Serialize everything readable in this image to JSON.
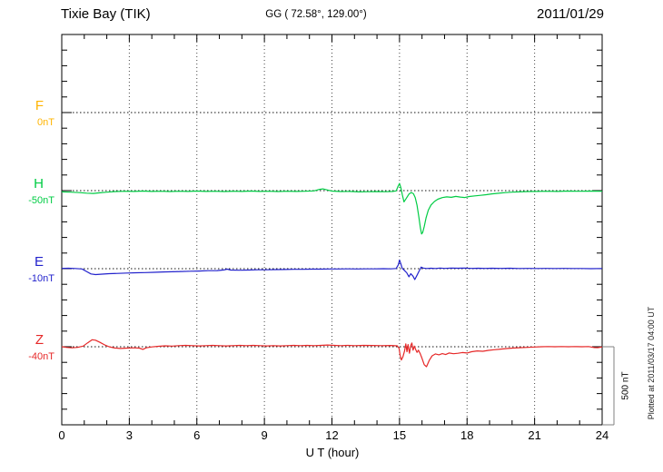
{
  "header": {
    "station": "Tixie Bay (TIK)",
    "coords": "GG ( 72.58°, 129.00°)",
    "date": "2011/01/29"
  },
  "chart_data": {
    "type": "line",
    "title": "Tixie Bay (TIK)",
    "station_code": "TIK",
    "date": "2011/01/29",
    "coordinates": "GG ( 72.58°, 129.00°)",
    "xlabel": "U T (hour)",
    "x_range": [
      0,
      24
    ],
    "x_ticks": [
      0,
      3,
      6,
      9,
      12,
      15,
      18,
      21,
      24
    ],
    "x_minor_tick_hours": 1,
    "row_spacing_nT": 500,
    "y_tick_interval_nT": 100,
    "values_unit": "nT deviation from each component baseline",
    "grid": "dotted vertical lines every 3 h; dotted horizontal baseline per component",
    "scale_bar": {
      "label": "500 nT",
      "nT": 500
    },
    "footer_note": "Plotted at 2011/03/17 04:00 UT",
    "components": [
      {
        "name": "F",
        "offset_label": "0nT",
        "color": "#ffb400",
        "has_data": false,
        "points": []
      },
      {
        "name": "H",
        "offset_label": "-50nT",
        "color": "#00cc44",
        "has_data": true,
        "points": [
          [
            0,
            -8
          ],
          [
            0.4,
            -10
          ],
          [
            0.8,
            -13
          ],
          [
            1.1,
            -16
          ],
          [
            1.4,
            -18
          ],
          [
            1.7,
            -14
          ],
          [
            2.0,
            -10
          ],
          [
            2.4,
            -6
          ],
          [
            2.8,
            -4
          ],
          [
            3.2,
            -5
          ],
          [
            3.6,
            -3
          ],
          [
            4.0,
            -5
          ],
          [
            4.4,
            -4
          ],
          [
            4.8,
            -6
          ],
          [
            5.2,
            -4
          ],
          [
            5.6,
            -5
          ],
          [
            6.0,
            -3
          ],
          [
            6.4,
            -5
          ],
          [
            6.8,
            -4
          ],
          [
            7.2,
            -6
          ],
          [
            7.6,
            -4
          ],
          [
            8.0,
            -5
          ],
          [
            8.4,
            -3
          ],
          [
            8.8,
            -5
          ],
          [
            9.2,
            -4
          ],
          [
            9.6,
            -6
          ],
          [
            10.0,
            -4
          ],
          [
            10.4,
            -5
          ],
          [
            10.8,
            -4
          ],
          [
            11.2,
            -2
          ],
          [
            11.45,
            8
          ],
          [
            11.6,
            11
          ],
          [
            11.8,
            4
          ],
          [
            12.0,
            -3
          ],
          [
            12.4,
            -6
          ],
          [
            12.8,
            -5
          ],
          [
            13.2,
            -8
          ],
          [
            13.6,
            -7
          ],
          [
            14.0,
            -6
          ],
          [
            14.4,
            -7
          ],
          [
            14.7,
            -5
          ],
          [
            14.85,
            -2
          ],
          [
            14.93,
            25
          ],
          [
            15.0,
            46
          ],
          [
            15.06,
            18
          ],
          [
            15.12,
            -25
          ],
          [
            15.2,
            -72
          ],
          [
            15.3,
            -50
          ],
          [
            15.42,
            -22
          ],
          [
            15.52,
            -12
          ],
          [
            15.62,
            -20
          ],
          [
            15.7,
            -45
          ],
          [
            15.78,
            -95
          ],
          [
            15.86,
            -170
          ],
          [
            15.93,
            -240
          ],
          [
            15.98,
            -278
          ],
          [
            16.03,
            -268
          ],
          [
            16.1,
            -230
          ],
          [
            16.18,
            -175
          ],
          [
            16.28,
            -125
          ],
          [
            16.4,
            -92
          ],
          [
            16.55,
            -70
          ],
          [
            16.7,
            -55
          ],
          [
            16.9,
            -45
          ],
          [
            17.1,
            -40
          ],
          [
            17.3,
            -43
          ],
          [
            17.5,
            -37
          ],
          [
            17.7,
            -41
          ],
          [
            17.9,
            -44
          ],
          [
            18.1,
            -38
          ],
          [
            18.35,
            -34
          ],
          [
            18.6,
            -30
          ],
          [
            18.85,
            -26
          ],
          [
            19.1,
            -21
          ],
          [
            19.4,
            -17
          ],
          [
            19.7,
            -13
          ],
          [
            20.0,
            -10
          ],
          [
            20.3,
            -8
          ],
          [
            20.7,
            -6
          ],
          [
            21.1,
            -5
          ],
          [
            21.5,
            -4
          ],
          [
            22.0,
            -5
          ],
          [
            22.5,
            -3
          ],
          [
            23.0,
            -4
          ],
          [
            23.5,
            -3
          ],
          [
            24.0,
            -4
          ]
        ]
      },
      {
        "name": "E",
        "offset_label": "-10nT",
        "color": "#2222cc",
        "has_data": true,
        "points": [
          [
            0,
            2
          ],
          [
            0.3,
            3
          ],
          [
            0.6,
            1
          ],
          [
            0.9,
            -2
          ],
          [
            1.1,
            -18
          ],
          [
            1.3,
            -34
          ],
          [
            1.5,
            -38
          ],
          [
            1.8,
            -35
          ],
          [
            2.1,
            -32
          ],
          [
            2.5,
            -30
          ],
          [
            2.9,
            -28
          ],
          [
            3.3,
            -26
          ],
          [
            3.7,
            -25
          ],
          [
            4.1,
            -23
          ],
          [
            4.5,
            -21
          ],
          [
            4.9,
            -20
          ],
          [
            5.3,
            -18
          ],
          [
            5.7,
            -16
          ],
          [
            6.1,
            -15
          ],
          [
            6.5,
            -13
          ],
          [
            6.9,
            -12
          ],
          [
            7.2,
            -8
          ],
          [
            7.35,
            -3
          ],
          [
            7.5,
            -9
          ],
          [
            7.9,
            -10
          ],
          [
            8.3,
            -9
          ],
          [
            8.7,
            -7
          ],
          [
            9.1,
            -7
          ],
          [
            9.5,
            -6
          ],
          [
            9.9,
            -5
          ],
          [
            10.3,
            -4
          ],
          [
            10.7,
            -4
          ],
          [
            11.1,
            -3
          ],
          [
            11.5,
            -3
          ],
          [
            11.9,
            -2
          ],
          [
            12.3,
            -2
          ],
          [
            12.7,
            -1
          ],
          [
            13.1,
            -2
          ],
          [
            13.5,
            -1
          ],
          [
            13.9,
            -1
          ],
          [
            14.3,
            0
          ],
          [
            14.6,
            -1
          ],
          [
            14.85,
            1
          ],
          [
            14.95,
            25
          ],
          [
            15.0,
            56
          ],
          [
            15.06,
            30
          ],
          [
            15.12,
            2
          ],
          [
            15.2,
            -8
          ],
          [
            15.32,
            -26
          ],
          [
            15.42,
            -52
          ],
          [
            15.5,
            -32
          ],
          [
            15.6,
            -48
          ],
          [
            15.68,
            -70
          ],
          [
            15.78,
            -42
          ],
          [
            15.88,
            -12
          ],
          [
            15.96,
            10
          ],
          [
            16.05,
            4
          ],
          [
            16.2,
            1
          ],
          [
            16.4,
            3
          ],
          [
            16.6,
            1
          ],
          [
            16.8,
            4
          ],
          [
            17.0,
            2
          ],
          [
            17.3,
            4
          ],
          [
            17.6,
            3
          ],
          [
            17.9,
            4
          ],
          [
            18.2,
            2
          ],
          [
            18.5,
            3
          ],
          [
            18.8,
            2
          ],
          [
            19.1,
            3
          ],
          [
            19.5,
            2
          ],
          [
            19.9,
            3
          ],
          [
            20.3,
            1
          ],
          [
            20.7,
            2
          ],
          [
            21.1,
            1
          ],
          [
            21.5,
            2
          ],
          [
            21.9,
            1
          ],
          [
            22.3,
            2
          ],
          [
            22.7,
            1
          ],
          [
            23.1,
            1
          ],
          [
            23.5,
            0
          ],
          [
            24.0,
            1
          ]
        ]
      },
      {
        "name": "Z",
        "offset_label": "-40nT",
        "color": "#e62828",
        "has_data": true,
        "points": [
          [
            0,
            0
          ],
          [
            0.2,
            -4
          ],
          [
            0.45,
            -7
          ],
          [
            0.7,
            -4
          ],
          [
            0.95,
            4
          ],
          [
            1.15,
            25
          ],
          [
            1.35,
            45
          ],
          [
            1.5,
            42
          ],
          [
            1.7,
            28
          ],
          [
            1.9,
            12
          ],
          [
            2.1,
            0
          ],
          [
            2.35,
            -8
          ],
          [
            2.6,
            -11
          ],
          [
            2.9,
            -9
          ],
          [
            3.2,
            -7
          ],
          [
            3.45,
            -9
          ],
          [
            3.6,
            -17
          ],
          [
            3.75,
            -7
          ],
          [
            4.0,
            -1
          ],
          [
            4.3,
            3
          ],
          [
            4.6,
            6
          ],
          [
            4.9,
            4
          ],
          [
            5.2,
            7
          ],
          [
            5.5,
            9
          ],
          [
            5.8,
            7
          ],
          [
            6.1,
            5
          ],
          [
            6.4,
            7
          ],
          [
            6.7,
            9
          ],
          [
            7.0,
            7
          ],
          [
            7.3,
            5
          ],
          [
            7.6,
            7
          ],
          [
            7.9,
            9
          ],
          [
            8.2,
            7
          ],
          [
            8.5,
            9
          ],
          [
            8.8,
            7
          ],
          [
            9.1,
            5
          ],
          [
            9.4,
            7
          ],
          [
            9.7,
            5
          ],
          [
            10.0,
            7
          ],
          [
            10.3,
            9
          ],
          [
            10.6,
            7
          ],
          [
            10.9,
            9
          ],
          [
            11.2,
            7
          ],
          [
            11.5,
            9
          ],
          [
            11.8,
            11
          ],
          [
            12.1,
            9
          ],
          [
            12.4,
            7
          ],
          [
            12.7,
            9
          ],
          [
            13.0,
            7
          ],
          [
            13.4,
            9
          ],
          [
            13.8,
            8
          ],
          [
            14.2,
            7
          ],
          [
            14.6,
            8
          ],
          [
            14.9,
            6
          ],
          [
            14.98,
            -10
          ],
          [
            15.03,
            -55
          ],
          [
            15.08,
            -85
          ],
          [
            15.15,
            -65
          ],
          [
            15.22,
            -30
          ],
          [
            15.28,
            18
          ],
          [
            15.33,
            -32
          ],
          [
            15.38,
            14
          ],
          [
            15.44,
            -42
          ],
          [
            15.5,
            8
          ],
          [
            15.55,
            24
          ],
          [
            15.6,
            -22
          ],
          [
            15.66,
            4
          ],
          [
            15.72,
            -18
          ],
          [
            15.78,
            -36
          ],
          [
            15.84,
            -22
          ],
          [
            15.92,
            -45
          ],
          [
            16.0,
            -75
          ],
          [
            16.1,
            -115
          ],
          [
            16.2,
            -128
          ],
          [
            16.32,
            -88
          ],
          [
            16.45,
            -58
          ],
          [
            16.6,
            -46
          ],
          [
            16.75,
            -52
          ],
          [
            16.9,
            -44
          ],
          [
            17.05,
            -50
          ],
          [
            17.2,
            -40
          ],
          [
            17.4,
            -45
          ],
          [
            17.6,
            -42
          ],
          [
            17.8,
            -37
          ],
          [
            18.0,
            -40
          ],
          [
            18.2,
            -32
          ],
          [
            18.45,
            -27
          ],
          [
            18.7,
            -29
          ],
          [
            18.95,
            -23
          ],
          [
            19.2,
            -19
          ],
          [
            19.5,
            -15
          ],
          [
            19.8,
            -11
          ],
          [
            20.1,
            -8
          ],
          [
            20.4,
            -6
          ],
          [
            20.7,
            -4
          ],
          [
            21.0,
            -2
          ],
          [
            21.3,
            0
          ],
          [
            21.6,
            1
          ],
          [
            21.9,
            0
          ],
          [
            22.2,
            1
          ],
          [
            22.5,
            0
          ],
          [
            22.8,
            1
          ],
          [
            23.1,
            0
          ],
          [
            23.4,
            1
          ],
          [
            23.65,
            -5
          ],
          [
            23.8,
            -6
          ],
          [
            24.0,
            -2
          ]
        ]
      }
    ]
  }
}
